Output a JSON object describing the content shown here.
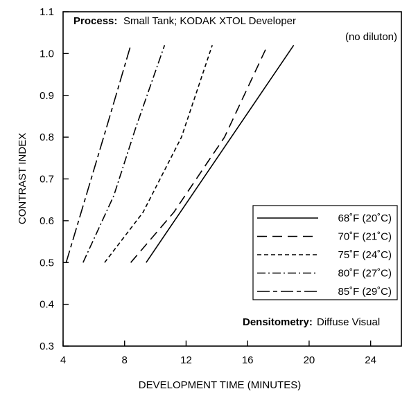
{
  "chart_data": {
    "type": "line",
    "xlabel": "DEVELOPMENT TIME (MINUTES)",
    "ylabel": "CONTRAST INDEX",
    "xlim": [
      4,
      26
    ],
    "ylim": [
      0.3,
      1.1
    ],
    "x_ticks": [
      "4",
      "8",
      "12",
      "16",
      "20",
      "24"
    ],
    "y_ticks": [
      "0.3",
      "0.4",
      "0.5",
      "0.6",
      "0.7",
      "0.8",
      "0.9",
      "1.0",
      "1.1"
    ],
    "grid": false,
    "legend_position": "right",
    "annotations": {
      "process_label": "Process:",
      "process_value": "Small Tank; KODAK XTOL Developer",
      "process_note": "(no diluton)",
      "densitometry_label": "Densitometry:",
      "densitometry_value": "Diffuse Visual"
    },
    "series": [
      {
        "name": "68˚F (20˚C)",
        "line_style": "solid",
        "points": [
          [
            9.4,
            0.5
          ],
          [
            19.0,
            1.02
          ]
        ]
      },
      {
        "name": "70˚F (21˚C)",
        "line_style": "long-dash",
        "points": [
          [
            8.4,
            0.5
          ],
          [
            11.2,
            0.62
          ],
          [
            14.5,
            0.8
          ],
          [
            17.3,
            1.02
          ]
        ]
      },
      {
        "name": "75˚F (24˚C)",
        "line_style": "short-dash",
        "points": [
          [
            6.7,
            0.5
          ],
          [
            9.2,
            0.62
          ],
          [
            11.7,
            0.8
          ],
          [
            13.7,
            1.02
          ]
        ]
      },
      {
        "name": "80˚F (27˚C)",
        "line_style": "dash-dot",
        "points": [
          [
            5.3,
            0.5
          ],
          [
            7.3,
            0.66
          ],
          [
            8.7,
            0.82
          ],
          [
            10.6,
            1.02
          ]
        ]
      },
      {
        "name": "85˚F (29˚C)",
        "line_style": "long-short-dash",
        "points": [
          [
            4.2,
            0.5
          ],
          [
            6.8,
            0.82
          ],
          [
            8.4,
            1.02
          ]
        ]
      }
    ]
  }
}
